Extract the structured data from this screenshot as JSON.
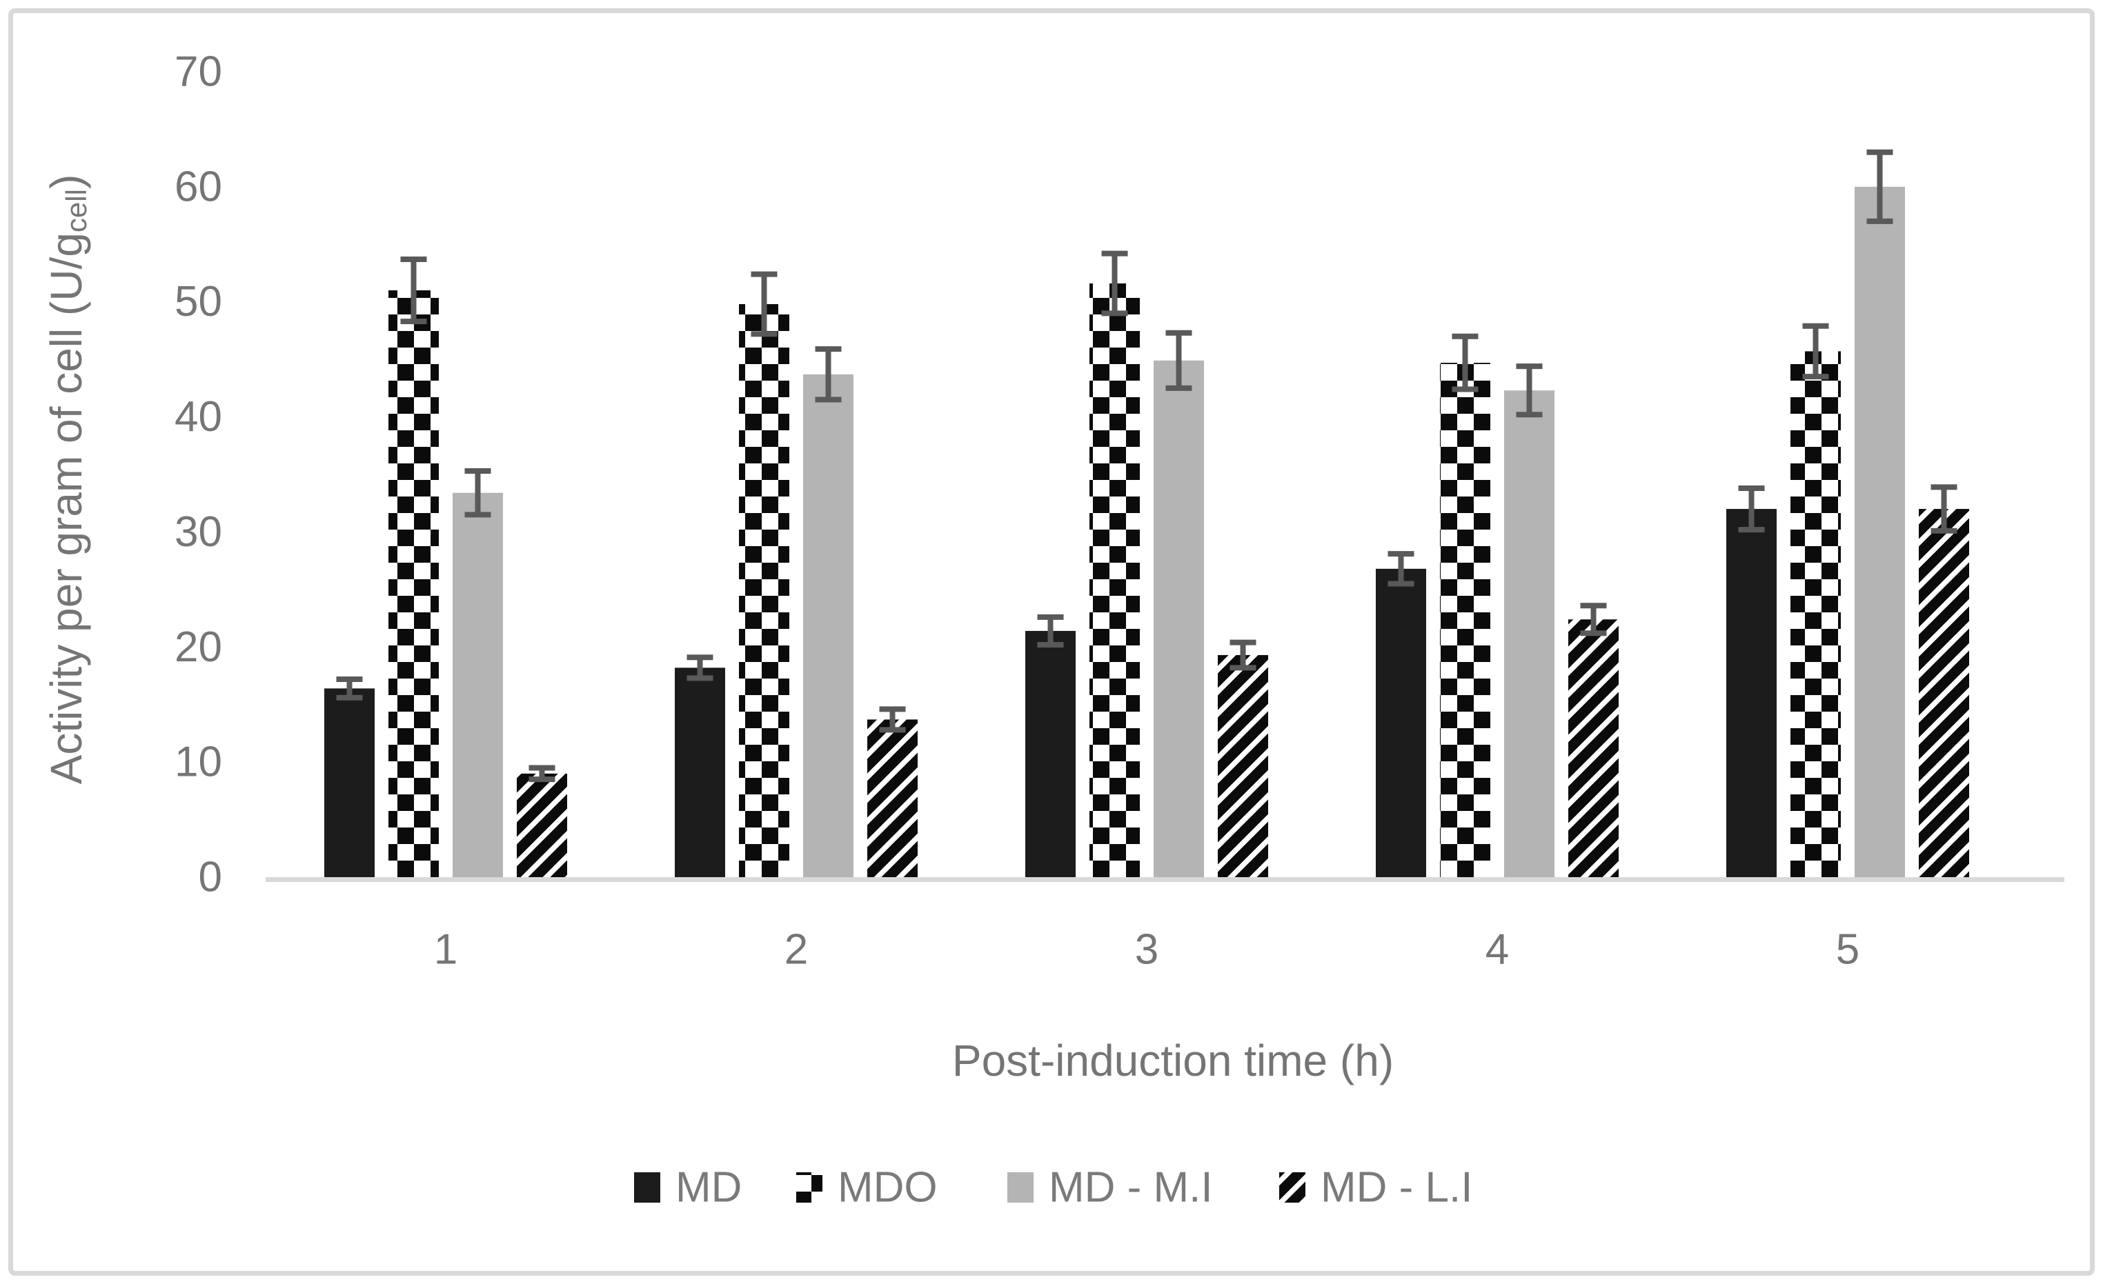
{
  "chart_data": {
    "type": "bar",
    "title": "",
    "xlabel": "Post-induction time (h)",
    "ylabel": "Activity per gram of cell (U/gcell)",
    "ylabel_parts": {
      "main": "Activity per gram of cell (U/g",
      "sub": "cell",
      "close": ")"
    },
    "categories": [
      "1",
      "2",
      "3",
      "4",
      "5"
    ],
    "yticks": [
      0,
      10,
      20,
      30,
      40,
      50,
      60,
      70
    ],
    "ylim": [
      0,
      70
    ],
    "grid": "off",
    "legend_position": "bottom",
    "series": [
      {
        "name": "MD",
        "swatch": "solid",
        "color": "#1c1c1c",
        "values": [
          16.4,
          18.2,
          21.4,
          26.8,
          32.0
        ],
        "errors": [
          0.8,
          0.9,
          1.2,
          1.3,
          1.8
        ]
      },
      {
        "name": "MDO",
        "swatch": "checkerboard",
        "color": "#0b0b0b",
        "values": [
          51.0,
          49.8,
          51.6,
          44.7,
          45.7
        ],
        "errors": [
          2.7,
          2.6,
          2.6,
          2.3,
          2.2
        ]
      },
      {
        "name": "MD - M.I",
        "swatch": "solid",
        "color": "#b4b4b4",
        "values": [
          33.4,
          43.7,
          44.9,
          42.3,
          60.0
        ],
        "errors": [
          1.9,
          2.2,
          2.4,
          2.1,
          3.0
        ]
      },
      {
        "name": "MD - L.I",
        "swatch": "diagonal-stripes",
        "color": "#0b0b0b",
        "values": [
          9.0,
          13.7,
          19.3,
          22.4,
          32.0
        ],
        "errors": [
          0.5,
          0.9,
          1.1,
          1.2,
          1.9
        ]
      }
    ],
    "colors": {
      "error_bar": "#595959",
      "axis_text": "#757575",
      "baseline": "#d9d9d9",
      "pattern_white": "#ffffff"
    }
  }
}
